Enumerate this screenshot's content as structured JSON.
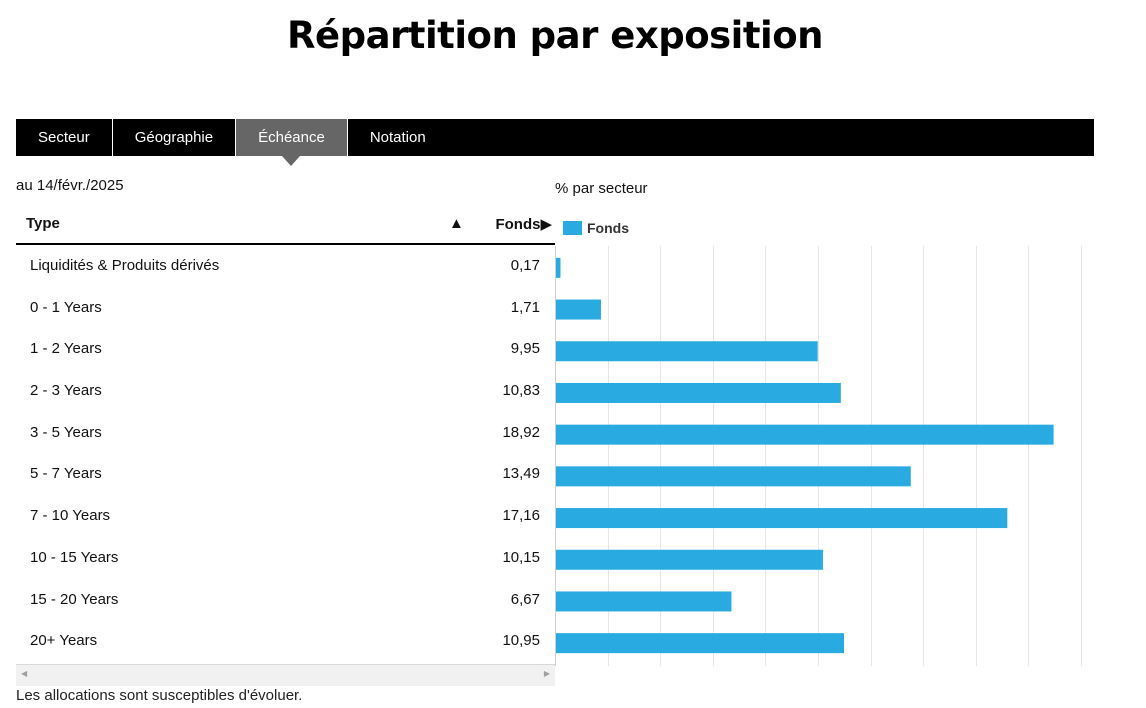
{
  "page": {
    "title": "Répartition par exposition",
    "as_of": "au 14/févr./2025",
    "footnote": "Les allocations sont susceptibles d'évoluer."
  },
  "tabs": [
    {
      "label": "Secteur",
      "active": false
    },
    {
      "label": "Géographie",
      "active": false
    },
    {
      "label": "Échéance",
      "active": true
    },
    {
      "label": "Notation",
      "active": false
    }
  ],
  "table": {
    "col_type": "Type",
    "sort_indicator": "▲",
    "col_fonds": "Fonds▶",
    "rows": [
      {
        "label": "Liquidités & Produits dérivés",
        "value": "0,17"
      },
      {
        "label": "0 - 1 Years",
        "value": "1,71"
      },
      {
        "label": "1 - 2 Years",
        "value": "9,95"
      },
      {
        "label": "2 - 3 Years",
        "value": "10,83"
      },
      {
        "label": "3 - 5 Years",
        "value": "18,92"
      },
      {
        "label": "5 - 7 Years",
        "value": "13,49"
      },
      {
        "label": "7 - 10 Years",
        "value": "17,16"
      },
      {
        "label": "10 - 15 Years",
        "value": "10,15"
      },
      {
        "label": "15 - 20 Years",
        "value": "6,67"
      },
      {
        "label": "20+ Years",
        "value": "10,95"
      }
    ]
  },
  "scrollbar": {
    "left_arrow": "◀",
    "right_arrow": "▶"
  },
  "colors": {
    "bar": "#29abe2",
    "tab_active": "#666666",
    "tabbar": "#000000",
    "grid": "#e6e6e6"
  },
  "chart_data": {
    "type": "bar",
    "orientation": "horizontal",
    "title": "% par secteur",
    "categories": [
      "Liquidités & Produits dérivés",
      "0 - 1 Years",
      "1 - 2 Years",
      "2 - 3 Years",
      "3 - 5 Years",
      "5 - 7 Years",
      "7 - 10 Years",
      "10 - 15 Years",
      "15 - 20 Years",
      "20+ Years"
    ],
    "series": [
      {
        "name": "Fonds",
        "values": [
          0.17,
          1.71,
          9.95,
          10.83,
          18.92,
          13.49,
          17.16,
          10.15,
          6.67,
          10.95
        ]
      }
    ],
    "legend": "top-left",
    "grid": true
  }
}
